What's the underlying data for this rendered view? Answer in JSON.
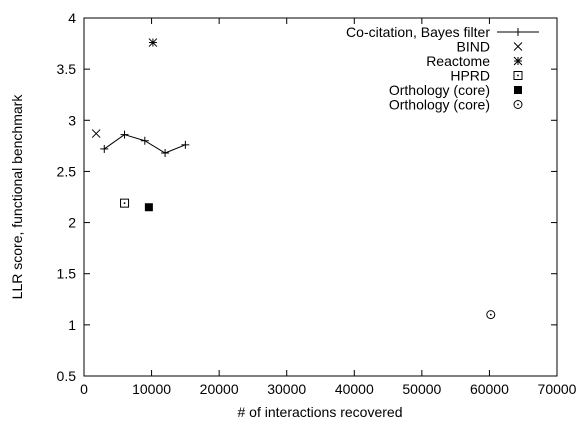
{
  "chart_data": {
    "type": "scatter",
    "xlabel": "# of interactions recovered",
    "ylabel": "LLR score, functional benchmark",
    "xlim": [
      0,
      70000
    ],
    "ylim": [
      0.5,
      4
    ],
    "xticks": [
      0,
      10000,
      20000,
      30000,
      40000,
      50000,
      60000,
      70000
    ],
    "yticks": [
      0.5,
      1,
      1.5,
      2,
      2.5,
      3,
      3.5,
      4
    ],
    "xtick_labels": [
      "0",
      "10000",
      "20000",
      "30000",
      "40000",
      "50000",
      "60000",
      "70000"
    ],
    "ytick_labels": [
      "0.5",
      "1",
      "1.5",
      "2",
      "2.5",
      "3",
      "3.5",
      "4"
    ],
    "grid": false,
    "legend_position": "top-right",
    "series": [
      {
        "name": "Co-citation, Bayes filter",
        "style": "line-plus",
        "points": [
          [
            3000,
            2.72
          ],
          [
            6000,
            2.86
          ],
          [
            9000,
            2.8
          ],
          [
            12000,
            2.68
          ],
          [
            15000,
            2.76
          ]
        ]
      },
      {
        "name": "BIND",
        "style": "cross",
        "points": [
          [
            1800,
            2.87
          ]
        ]
      },
      {
        "name": "Reactome",
        "style": "star",
        "points": [
          [
            10200,
            3.76
          ]
        ]
      },
      {
        "name": "HPRD",
        "style": "dotted-square",
        "points": [
          [
            6000,
            2.19
          ]
        ]
      },
      {
        "name": "Orthology (core)",
        "style": "filled-square",
        "points": [
          [
            9600,
            2.15
          ]
        ]
      },
      {
        "name": "Orthology (core)",
        "style": "dotted-circle",
        "points": [
          [
            60200,
            1.1
          ]
        ]
      }
    ]
  }
}
